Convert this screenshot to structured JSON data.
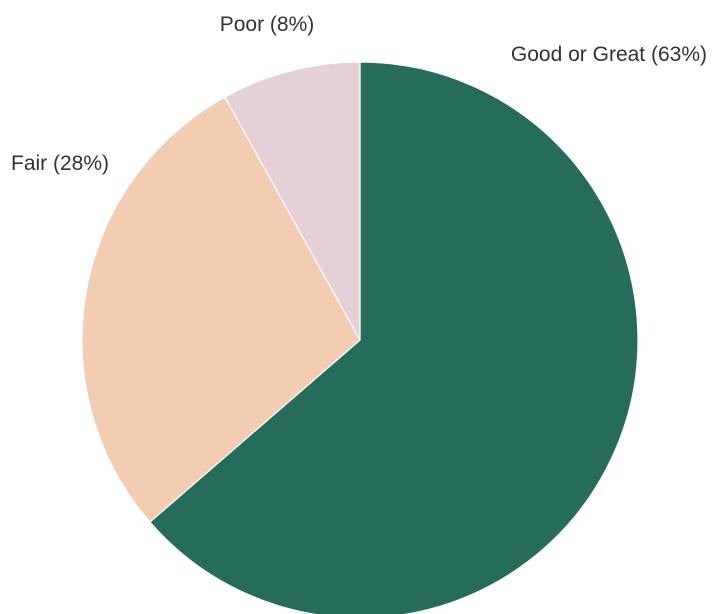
{
  "chart_data": {
    "type": "pie",
    "title": "",
    "slices": [
      {
        "label": "Good or Great (63%)",
        "value": 63,
        "color": "#256d5a"
      },
      {
        "label": "Fair (28%)",
        "value": 28,
        "color": "#f3cdb1"
      },
      {
        "label": "Poor (8%)",
        "value": 8,
        "color": "#e5d0d6"
      }
    ],
    "start": "12 o'clock",
    "direction": "clockwise",
    "legend": "none"
  }
}
